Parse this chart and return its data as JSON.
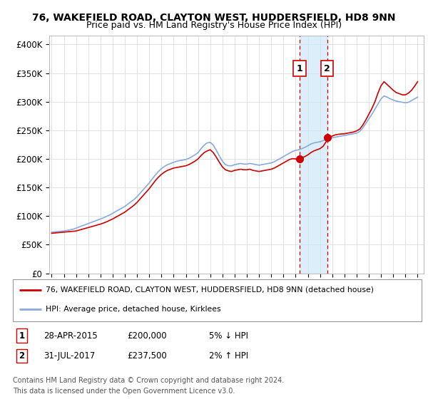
{
  "title": "76, WAKEFIELD ROAD, CLAYTON WEST, HUDDERSFIELD, HD8 9NN",
  "subtitle": "Price paid vs. HM Land Registry's House Price Index (HPI)",
  "ylabel_ticks": [
    "£0",
    "£50K",
    "£100K",
    "£150K",
    "£200K",
    "£250K",
    "£300K",
    "£350K",
    "£400K"
  ],
  "ytick_vals": [
    0,
    50000,
    100000,
    150000,
    200000,
    250000,
    300000,
    350000,
    400000
  ],
  "xlim": [
    1994.8,
    2025.5
  ],
  "ylim": [
    0,
    415000
  ],
  "transaction1": {
    "label": "1",
    "date": "28-APR-2015",
    "price": 200000,
    "x": 2015.32,
    "pct": "5%",
    "dir": "↓"
  },
  "transaction2": {
    "label": "2",
    "date": "31-JUL-2017",
    "price": 237500,
    "x": 2017.58,
    "pct": "2%",
    "dir": "↑"
  },
  "legend_property": "76, WAKEFIELD ROAD, CLAYTON WEST, HUDDERSFIELD, HD8 9NN (detached house)",
  "legend_hpi": "HPI: Average price, detached house, Kirklees",
  "footer1": "Contains HM Land Registry data © Crown copyright and database right 2024.",
  "footer2": "This data is licensed under the Open Government Licence v3.0.",
  "property_color": "#cc0000",
  "hpi_color": "#88aadd",
  "bg_color": "#ffffff",
  "grid_color": "#dddddd",
  "hpi_x": [
    1995.0,
    1995.25,
    1995.5,
    1995.75,
    1996.0,
    1996.25,
    1996.5,
    1996.75,
    1997.0,
    1997.25,
    1997.5,
    1997.75,
    1998.0,
    1998.25,
    1998.5,
    1998.75,
    1999.0,
    1999.25,
    1999.5,
    1999.75,
    2000.0,
    2000.25,
    2000.5,
    2000.75,
    2001.0,
    2001.25,
    2001.5,
    2001.75,
    2002.0,
    2002.25,
    2002.5,
    2002.75,
    2003.0,
    2003.25,
    2003.5,
    2003.75,
    2004.0,
    2004.25,
    2004.5,
    2004.75,
    2005.0,
    2005.25,
    2005.5,
    2005.75,
    2006.0,
    2006.25,
    2006.5,
    2006.75,
    2007.0,
    2007.25,
    2007.5,
    2007.75,
    2008.0,
    2008.25,
    2008.5,
    2008.75,
    2009.0,
    2009.25,
    2009.5,
    2009.75,
    2010.0,
    2010.25,
    2010.5,
    2010.75,
    2011.0,
    2011.25,
    2011.5,
    2011.75,
    2012.0,
    2012.25,
    2012.5,
    2012.75,
    2013.0,
    2013.25,
    2013.5,
    2013.75,
    2014.0,
    2014.25,
    2014.5,
    2014.75,
    2015.0,
    2015.25,
    2015.5,
    2015.75,
    2016.0,
    2016.25,
    2016.5,
    2016.75,
    2017.0,
    2017.25,
    2017.5,
    2017.75,
    2018.0,
    2018.25,
    2018.5,
    2018.75,
    2019.0,
    2019.25,
    2019.5,
    2019.75,
    2020.0,
    2020.25,
    2020.5,
    2020.75,
    2021.0,
    2021.25,
    2021.5,
    2021.75,
    2022.0,
    2022.25,
    2022.5,
    2022.75,
    2023.0,
    2023.25,
    2023.5,
    2023.75,
    2024.0,
    2024.25,
    2024.5,
    2024.75,
    2025.0
  ],
  "hpi_y": [
    72000,
    72500,
    73000,
    73500,
    74000,
    75000,
    76000,
    77000,
    79000,
    81000,
    83000,
    85000,
    87000,
    89000,
    91000,
    93000,
    95000,
    97000,
    99500,
    102000,
    105000,
    108000,
    111000,
    114000,
    117000,
    121000,
    125000,
    129000,
    134000,
    140000,
    146000,
    152000,
    158000,
    165000,
    172000,
    178000,
    183000,
    187000,
    190000,
    192000,
    194000,
    196000,
    197000,
    198000,
    199000,
    201000,
    204000,
    207000,
    211000,
    218000,
    224000,
    228000,
    229000,
    224000,
    215000,
    205000,
    196000,
    190000,
    188000,
    188000,
    190000,
    191000,
    192000,
    191000,
    191000,
    192000,
    191000,
    190000,
    189000,
    190000,
    191000,
    192000,
    193000,
    195000,
    198000,
    201000,
    204000,
    207000,
    210000,
    213000,
    215000,
    216000,
    218000,
    220000,
    223000,
    226000,
    228000,
    229000,
    230000,
    232000,
    234000,
    236000,
    237000,
    238000,
    239000,
    240000,
    241000,
    242000,
    243000,
    244000,
    245000,
    248000,
    254000,
    262000,
    270000,
    278000,
    287000,
    296000,
    305000,
    310000,
    308000,
    305000,
    303000,
    301000,
    300000,
    299000,
    298000,
    299000,
    302000,
    305000,
    308000
  ],
  "prop_x": [
    1995.0,
    1995.25,
    1995.5,
    1995.75,
    1996.0,
    1996.25,
    1996.5,
    1996.75,
    1997.0,
    1997.25,
    1997.5,
    1997.75,
    1998.0,
    1998.25,
    1998.5,
    1998.75,
    1999.0,
    1999.25,
    1999.5,
    1999.75,
    2000.0,
    2000.25,
    2000.5,
    2000.75,
    2001.0,
    2001.25,
    2001.5,
    2001.75,
    2002.0,
    2002.25,
    2002.5,
    2002.75,
    2003.0,
    2003.25,
    2003.5,
    2003.75,
    2004.0,
    2004.25,
    2004.5,
    2004.75,
    2005.0,
    2005.25,
    2005.5,
    2005.75,
    2006.0,
    2006.25,
    2006.5,
    2006.75,
    2007.0,
    2007.25,
    2007.5,
    2007.75,
    2008.0,
    2008.25,
    2008.5,
    2008.75,
    2009.0,
    2009.25,
    2009.5,
    2009.75,
    2010.0,
    2010.25,
    2010.5,
    2010.75,
    2011.0,
    2011.25,
    2011.5,
    2011.75,
    2012.0,
    2012.25,
    2012.5,
    2012.75,
    2013.0,
    2013.25,
    2013.5,
    2013.75,
    2014.0,
    2014.25,
    2014.5,
    2014.75,
    2015.0,
    2015.25,
    2015.5,
    2015.75,
    2016.0,
    2016.25,
    2016.5,
    2016.75,
    2017.0,
    2017.25,
    2017.5,
    2017.75,
    2018.0,
    2018.25,
    2018.5,
    2018.75,
    2019.0,
    2019.25,
    2019.5,
    2019.75,
    2020.0,
    2020.25,
    2020.5,
    2020.75,
    2021.0,
    2021.25,
    2021.5,
    2021.75,
    2022.0,
    2022.25,
    2022.5,
    2022.75,
    2023.0,
    2023.25,
    2023.5,
    2023.75,
    2024.0,
    2024.25,
    2024.5,
    2024.75,
    2025.0
  ],
  "prop_y": [
    70000,
    70500,
    71000,
    71500,
    72000,
    72500,
    73000,
    73500,
    74000,
    75500,
    77000,
    78500,
    80000,
    81500,
    83000,
    84500,
    86000,
    88000,
    90000,
    92500,
    95000,
    98000,
    101000,
    104000,
    107000,
    111000,
    115000,
    119000,
    124000,
    130000,
    136000,
    142000,
    148000,
    155000,
    162000,
    168000,
    173000,
    177000,
    180000,
    182000,
    184000,
    185000,
    186000,
    187000,
    188000,
    190000,
    193000,
    196000,
    200000,
    206000,
    211000,
    214000,
    216000,
    211000,
    203000,
    194000,
    186000,
    181000,
    179000,
    178000,
    180000,
    181000,
    182000,
    181000,
    181000,
    182000,
    180000,
    179000,
    178000,
    179000,
    180000,
    181000,
    182000,
    184000,
    187000,
    190000,
    193000,
    196000,
    199000,
    200500,
    200000,
    200500,
    202000,
    204000,
    207000,
    211000,
    214000,
    216000,
    218000,
    222000,
    230000,
    237500,
    240000,
    242000,
    243000,
    243500,
    244000,
    245000,
    246000,
    247000,
    249000,
    252000,
    259000,
    268000,
    278000,
    288000,
    300000,
    315000,
    328000,
    335000,
    330000,
    325000,
    320000,
    316000,
    314000,
    312000,
    312000,
    315000,
    320000,
    327000,
    335000
  ]
}
